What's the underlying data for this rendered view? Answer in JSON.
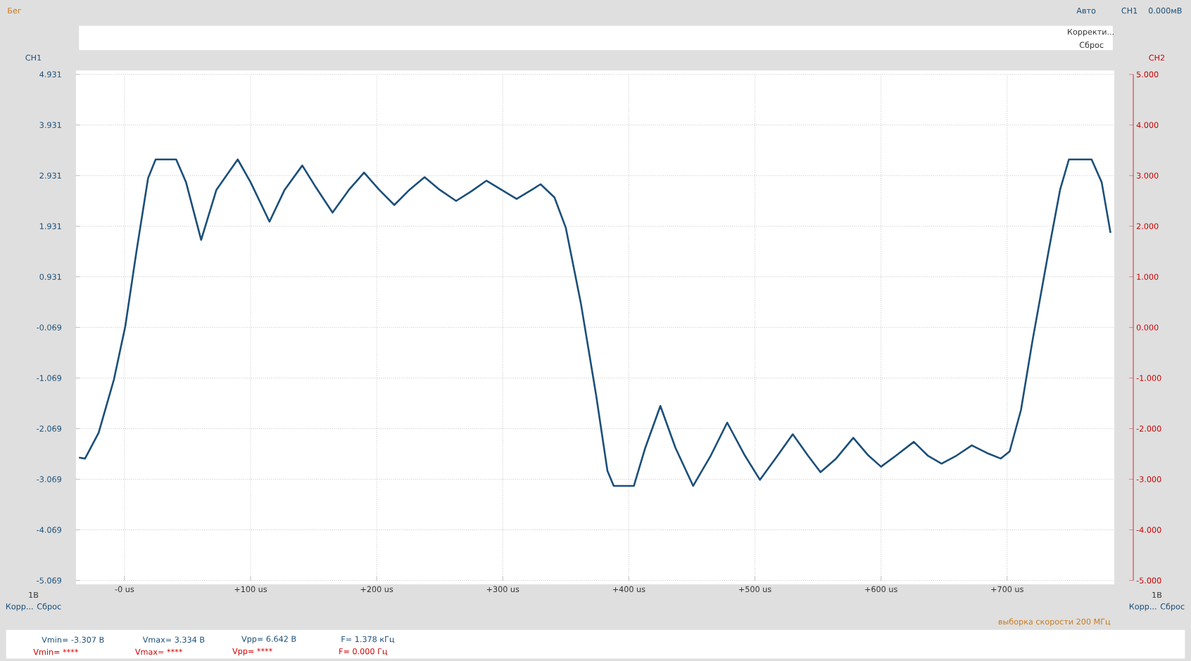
{
  "chart_data": {
    "type": "line",
    "ylabel": "CH1",
    "y2label": "CH2",
    "color": "#1b4f7a",
    "grid": true,
    "xlim": [
      -38.5,
      785
    ],
    "xticks": [
      {
        "value": 0,
        "label": "-0 us"
      },
      {
        "value": 100,
        "label": "+100 us"
      },
      {
        "value": 200,
        "label": "+200 us"
      },
      {
        "value": 300,
        "label": "+300 us"
      },
      {
        "value": 400,
        "label": "+400 us"
      },
      {
        "value": 500,
        "label": "+500 us"
      },
      {
        "value": 600,
        "label": "+600 us"
      },
      {
        "value": 700,
        "label": "+700 us"
      }
    ],
    "ylim": [
      -5.069,
      4.931
    ],
    "yticks": [
      4.931,
      3.931,
      2.931,
      1.931,
      0.931,
      -0.069,
      -1.069,
      -2.069,
      -3.069,
      -4.069,
      -5.069
    ],
    "y2lim": [
      -5,
      5
    ],
    "y2ticks": [
      {
        "value": 5,
        "label": "5.000"
      },
      {
        "value": 4,
        "label": "4.000"
      },
      {
        "value": 3,
        "label": "3.000"
      },
      {
        "value": 2,
        "label": "2.000"
      },
      {
        "value": 1,
        "label": "1.000"
      },
      {
        "value": 0,
        "label": "0.000"
      },
      {
        "value": -1,
        "label": "-1.000"
      },
      {
        "value": -2,
        "label": "-2.000"
      },
      {
        "value": -3,
        "label": "-3.000"
      },
      {
        "value": -4,
        "label": "-4.000"
      },
      {
        "value": -5,
        "label": "-5.000"
      }
    ],
    "x": [
      -36.1,
      -31.3,
      -20.5,
      -8.4,
      0.6,
      9.6,
      18.7,
      24.7,
      41,
      48.8,
      60.8,
      72.9,
      89.8,
      100,
      115,
      127,
      141,
      151,
      165,
      178,
      190,
      202,
      214,
      226,
      238,
      250,
      263,
      275,
      287,
      299,
      311,
      323,
      330,
      341,
      350,
      362,
      374,
      383,
      388,
      404,
      413,
      425,
      437,
      451,
      465,
      478,
      492,
      504,
      516,
      530,
      542,
      552,
      564,
      578,
      590,
      600,
      612,
      626,
      637,
      648,
      660,
      672,
      684,
      695,
      702,
      711,
      720,
      733,
      742,
      749,
      767,
      775,
      782
    ],
    "values": [
      -2.64,
      -2.66,
      -2.15,
      -1.1,
      -0.05,
      1.45,
      2.88,
      3.25,
      3.25,
      2.8,
      1.66,
      2.65,
      3.25,
      2.8,
      2.02,
      2.65,
      3.13,
      2.73,
      2.2,
      2.65,
      2.99,
      2.65,
      2.35,
      2.65,
      2.9,
      2.65,
      2.43,
      2.62,
      2.83,
      2.65,
      2.47,
      2.65,
      2.76,
      2.5,
      1.9,
      0.4,
      -1.4,
      -2.9,
      -3.2,
      -3.2,
      -2.45,
      -1.62,
      -2.45,
      -3.2,
      -2.6,
      -1.95,
      -2.6,
      -3.08,
      -2.67,
      -2.18,
      -2.6,
      -2.93,
      -2.67,
      -2.25,
      -2.6,
      -2.82,
      -2.6,
      -2.33,
      -2.6,
      -2.76,
      -2.6,
      -2.4,
      -2.55,
      -2.66,
      -2.52,
      -1.7,
      -0.35,
      1.45,
      2.65,
      3.25,
      3.25,
      2.8,
      1.8
    ],
    "annotations": [
      "Бег",
      "Авто",
      "CH1",
      "0.000мВ",
      "Корректи...",
      "Сброс",
      "1В",
      "Корр... Сброс",
      "1В",
      "Корр... Сброс",
      "выборка скорости 200 МГц",
      "Vmin= -3.307 В",
      "Vmax= 3.334 В",
      "Vpp= 6.642 В",
      "F= 1.378 кГц",
      "Vmin= ****",
      "Vmax= ****",
      "Vpp= ****",
      "F= 0.000 Гц"
    ]
  }
}
